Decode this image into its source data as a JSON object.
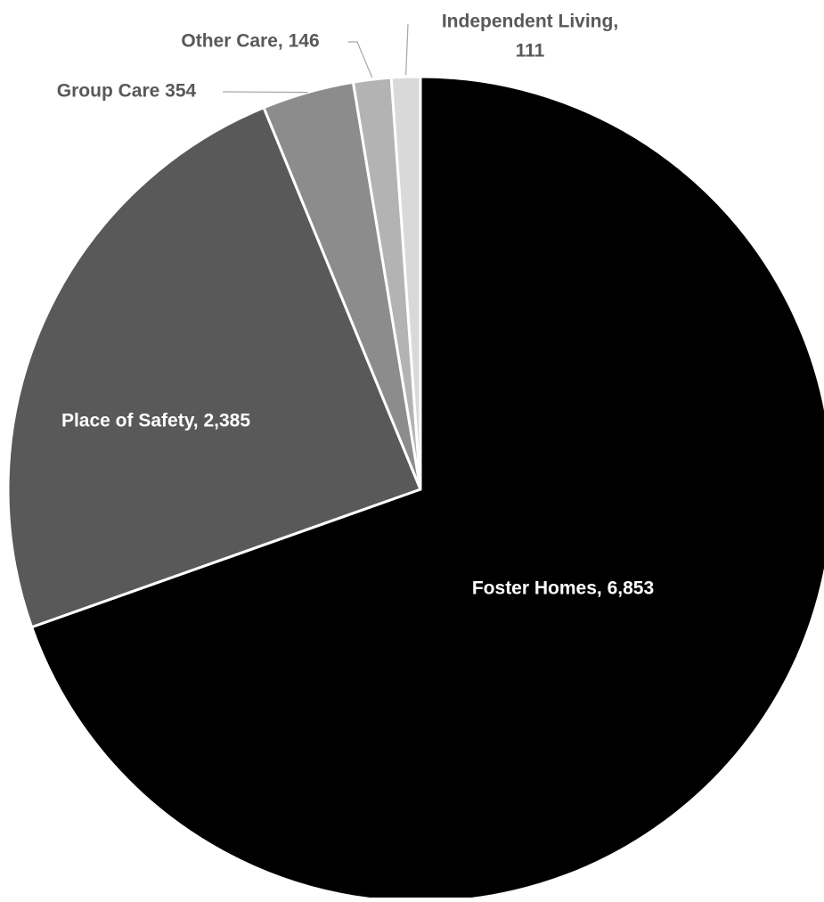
{
  "chart_data": {
    "type": "pie",
    "title": "",
    "slices": [
      {
        "label": "Foster Homes",
        "value": 6853,
        "display": "Foster Homes,  6,853",
        "color": "#000000",
        "label_color": "#ffffff"
      },
      {
        "label": "Place of Safety",
        "value": 2385,
        "display": "Place of Safety,  2,385",
        "color": "#595959",
        "label_color": "#ffffff"
      },
      {
        "label": "Group Care",
        "value": 354,
        "display": "Group Care 354",
        "color": "#8c8c8c",
        "label_color": "#595959"
      },
      {
        "label": "Other Care",
        "value": 146,
        "display": "Other Care,  146",
        "color": "#b3b3b3",
        "label_color": "#595959"
      },
      {
        "label": "Independent Living",
        "value": 111,
        "display_lines": [
          "Independent Living,",
          "111"
        ],
        "color": "#d9d9d9",
        "label_color": "#595959"
      }
    ],
    "start": "12 o'clock",
    "direction": "clockwise",
    "legend": "none"
  }
}
